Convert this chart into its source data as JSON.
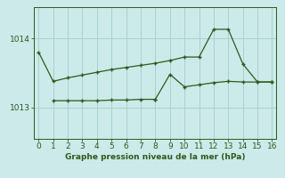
{
  "line1_x": [
    0,
    1,
    2,
    3,
    4,
    5,
    6,
    7,
    8,
    9,
    10,
    11,
    12,
    13,
    14,
    15,
    16
  ],
  "line1_y": [
    1013.8,
    1013.38,
    1013.43,
    1013.47,
    1013.51,
    1013.55,
    1013.58,
    1013.61,
    1013.64,
    1013.68,
    1013.73,
    1013.73,
    1014.13,
    1014.13,
    1013.63,
    1013.37,
    1013.37
  ],
  "line2_x": [
    1,
    2,
    3,
    4,
    5,
    6,
    7,
    8,
    9,
    10,
    11,
    12,
    13,
    14,
    15,
    16
  ],
  "line2_y": [
    1013.1,
    1013.1,
    1013.1,
    1013.1,
    1013.11,
    1013.11,
    1013.12,
    1013.12,
    1013.48,
    1013.3,
    1013.33,
    1013.36,
    1013.38,
    1013.37,
    1013.37,
    1013.37
  ],
  "line2_jump_x": [
    9
  ],
  "line2_jump_y": [
    1013.48
  ],
  "line_color": "#2d5a1b",
  "bg_color": "#cceaea",
  "grid_color": "#aad0d0",
  "xlabel": "Graphe pression niveau de la mer (hPa)",
  "yticks": [
    1013,
    1014
  ],
  "xticks": [
    0,
    1,
    2,
    3,
    4,
    5,
    6,
    7,
    8,
    9,
    10,
    11,
    12,
    13,
    14,
    15,
    16
  ],
  "xlim": [
    -0.3,
    16.3
  ],
  "ylim": [
    1012.55,
    1014.45
  ]
}
